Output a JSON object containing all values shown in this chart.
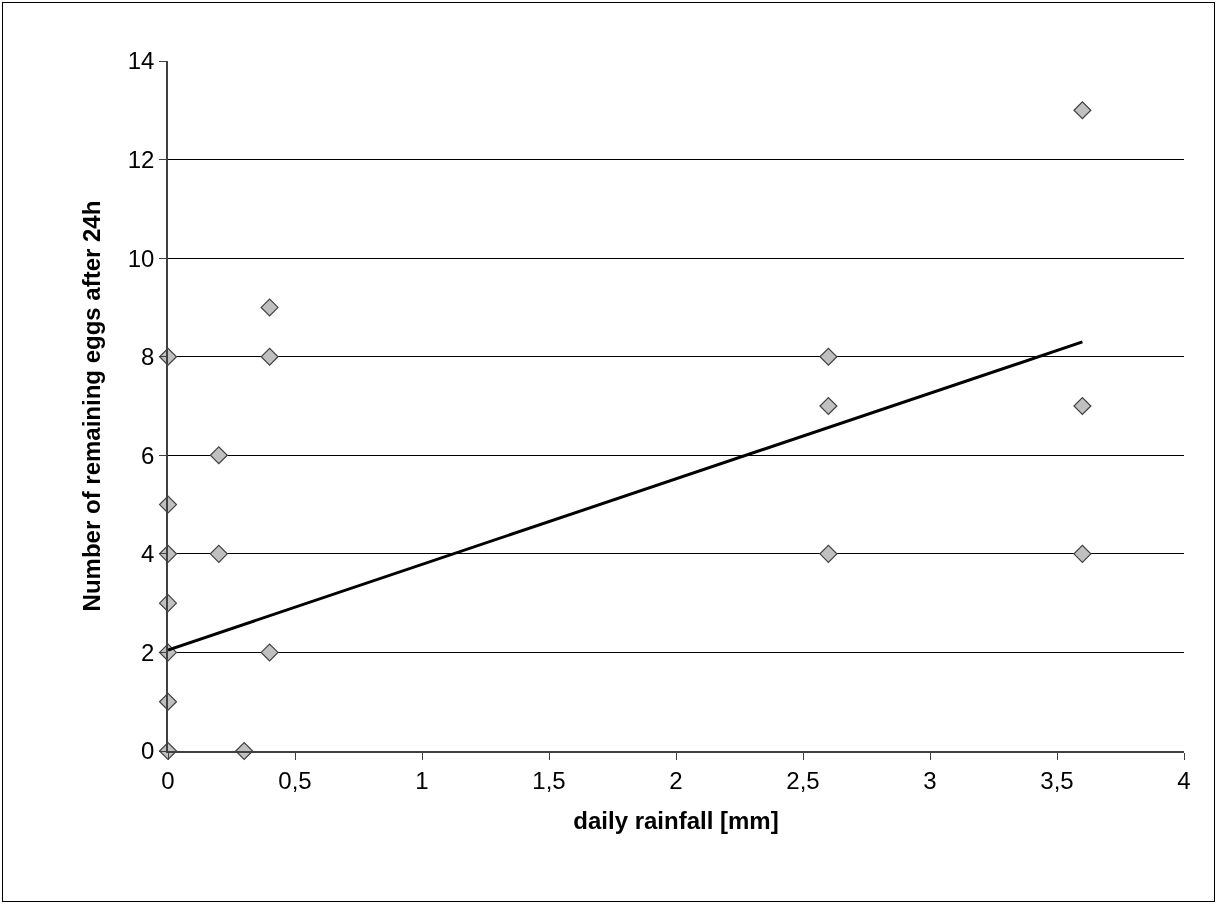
{
  "chart_data": {
    "type": "scatter",
    "xlabel": "daily rainfall [mm]",
    "ylabel": "Number of remaining eggs after 24h",
    "series": [
      {
        "color": "#c0c0c0",
        "x": [
          0,
          0,
          0,
          0,
          0,
          0,
          0,
          0.2,
          0.2,
          0.3,
          0.4,
          0.4,
          0.4,
          2.6,
          2.6,
          2.6,
          3.6,
          3.6,
          3.6
        ],
        "values": [
          8,
          5,
          4,
          3,
          2,
          1,
          0,
          6,
          4,
          0,
          9,
          8,
          2,
          8,
          7,
          4,
          13,
          7,
          4
        ]
      },
      {
        "type": "line",
        "color": "#000000",
        "x": [
          0,
          3.6
        ],
        "values": [
          2.05,
          8.3
        ],
        "marker": "none",
        "line_style": "solid"
      }
    ],
    "xlim": [
      0,
      4
    ],
    "xticks": [
      {
        "value": 0,
        "label": "0"
      },
      {
        "value": 0.5,
        "label": "0,5"
      },
      {
        "value": 1,
        "label": "1"
      },
      {
        "value": 1.5,
        "label": "1,5"
      },
      {
        "value": 2,
        "label": "2"
      },
      {
        "value": 2.5,
        "label": "2,5"
      },
      {
        "value": 3,
        "label": "3"
      },
      {
        "value": 3.5,
        "label": "3,5"
      },
      {
        "value": 4,
        "label": "4"
      }
    ],
    "ylim": [
      0,
      14
    ],
    "yticks": [
      0,
      2,
      4,
      6,
      8,
      10,
      12,
      14
    ],
    "grid": "y",
    "legend": false,
    "marker": "diamond"
  }
}
